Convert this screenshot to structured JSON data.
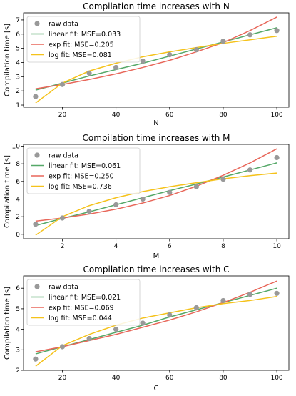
{
  "colors": {
    "raw": "#999999",
    "linear": "#55a868",
    "exp": "#e8675a",
    "log": "#f5c21b"
  },
  "chart_data": [
    {
      "type": "scatter",
      "title": "Compilation time increases with N",
      "xlabel": "N",
      "ylabel": "Compilation time [s]",
      "xlim": [
        5.5,
        104.5
      ],
      "ylim": [
        0.85,
        7.5
      ],
      "xticks": [
        20,
        40,
        60,
        80,
        100
      ],
      "yticks": [
        1,
        2,
        3,
        4,
        5,
        6,
        7
      ],
      "legend": "top-left",
      "raw": {
        "name": "raw data",
        "x": [
          10,
          20,
          30,
          40,
          50,
          60,
          70,
          80,
          90,
          100
        ],
        "y": [
          1.6,
          2.45,
          3.25,
          3.65,
          4.1,
          4.55,
          4.9,
          5.5,
          5.95,
          6.25
        ]
      },
      "series": [
        {
          "name": "linear fit: MSE=0.033",
          "color_key": "linear",
          "x": [
            10,
            20,
            30,
            40,
            50,
            60,
            70,
            80,
            90,
            100
          ],
          "y": [
            2.05,
            2.55,
            3.05,
            3.5,
            3.95,
            4.45,
            4.95,
            5.45,
            5.95,
            6.45
          ]
        },
        {
          "name": "exp fit: MSE=0.205",
          "color_key": "exp",
          "x": [
            10,
            20,
            30,
            40,
            50,
            60,
            70,
            80,
            90,
            100
          ],
          "y": [
            2.15,
            2.45,
            2.8,
            3.2,
            3.65,
            4.15,
            4.75,
            5.4,
            6.25,
            7.2
          ]
        },
        {
          "name": "log fit: MSE=0.081",
          "color_key": "log",
          "x": [
            10,
            20,
            30,
            40,
            50,
            60,
            70,
            80,
            90,
            100
          ],
          "y": [
            1.15,
            2.55,
            3.4,
            3.95,
            4.4,
            4.75,
            5.05,
            5.35,
            5.6,
            5.85
          ]
        }
      ]
    },
    {
      "type": "scatter",
      "title": "Compilation time increases with M",
      "xlabel": "M",
      "ylabel": "Compilation time [s]",
      "xlim": [
        0.55,
        10.45
      ],
      "ylim": [
        -0.5,
        10.2
      ],
      "xticks": [
        2,
        4,
        6,
        8,
        10
      ],
      "yticks": [
        0,
        2,
        4,
        6,
        8,
        10
      ],
      "legend": "top-left",
      "raw": {
        "name": "raw data",
        "x": [
          1,
          2,
          3,
          4,
          5,
          6,
          7,
          8,
          9,
          10
        ],
        "y": [
          1.15,
          1.85,
          2.6,
          3.35,
          4.0,
          4.75,
          5.4,
          6.25,
          7.3,
          8.7
        ]
      },
      "series": [
        {
          "name": "linear fit: MSE=0.061",
          "color_key": "linear",
          "x": [
            1,
            2,
            3,
            4,
            5,
            6,
            7,
            8,
            9,
            10
          ],
          "y": [
            1.0,
            1.8,
            2.55,
            3.35,
            4.15,
            4.95,
            5.7,
            6.5,
            7.3,
            8.1
          ]
        },
        {
          "name": "exp fit: MSE=0.250",
          "color_key": "exp",
          "x": [
            1,
            2,
            3,
            4,
            5,
            6,
            7,
            8,
            9,
            10
          ],
          "y": [
            1.5,
            1.85,
            2.3,
            2.85,
            3.55,
            4.4,
            5.45,
            6.7,
            8.1,
            9.7
          ]
        },
        {
          "name": "log fit: MSE=0.736",
          "color_key": "log",
          "x": [
            1,
            2,
            3,
            4,
            5,
            6,
            7,
            8,
            9,
            10
          ],
          "y": [
            -0.1,
            2.0,
            3.25,
            4.15,
            4.85,
            5.4,
            5.85,
            6.3,
            6.65,
            6.95
          ]
        }
      ]
    },
    {
      "type": "scatter",
      "title": "Compilation time increases with C",
      "xlabel": "C",
      "ylabel": "Compilation time [s]",
      "xlim": [
        5.5,
        104.5
      ],
      "ylim": [
        2.0,
        6.6
      ],
      "xticks": [
        20,
        40,
        60,
        80,
        100
      ],
      "yticks": [
        2,
        3,
        4,
        5,
        6
      ],
      "legend": "top-left",
      "raw": {
        "name": "raw data",
        "x": [
          10,
          20,
          30,
          40,
          50,
          60,
          70,
          80,
          90,
          100
        ],
        "y": [
          2.55,
          3.15,
          3.55,
          4.0,
          4.3,
          4.7,
          5.05,
          5.4,
          5.7,
          5.75
        ]
      },
      "series": [
        {
          "name": "linear fit: MSE=0.021",
          "color_key": "linear",
          "x": [
            10,
            20,
            30,
            40,
            50,
            60,
            70,
            80,
            90,
            100
          ],
          "y": [
            2.8,
            3.15,
            3.5,
            3.85,
            4.2,
            4.6,
            4.95,
            5.3,
            5.65,
            6.0
          ]
        },
        {
          "name": "exp fit: MSE=0.069",
          "color_key": "exp",
          "x": [
            10,
            20,
            30,
            40,
            50,
            60,
            70,
            80,
            90,
            100
          ],
          "y": [
            2.9,
            3.15,
            3.45,
            3.75,
            4.1,
            4.45,
            4.85,
            5.3,
            5.8,
            6.35
          ]
        },
        {
          "name": "log fit: MSE=0.044",
          "color_key": "log",
          "x": [
            10,
            20,
            30,
            40,
            50,
            60,
            70,
            80,
            90,
            100
          ],
          "y": [
            2.2,
            3.2,
            3.75,
            4.2,
            4.55,
            4.8,
            5.05,
            5.25,
            5.4,
            5.6
          ]
        }
      ]
    }
  ]
}
